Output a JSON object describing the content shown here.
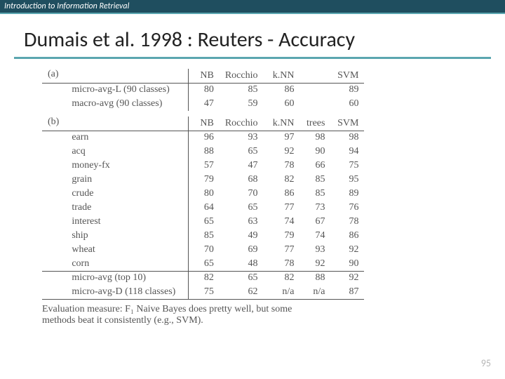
{
  "header": {
    "course": "Introduction to Information Retrieval"
  },
  "title": "Dumais et al. 1998 : Reuters - Accuracy",
  "table": {
    "section_a": "(a)",
    "section_b": "(b)",
    "cols_a": {
      "nb": "NB",
      "rocchio": "Rocchio",
      "knn": "k.NN",
      "trees": "",
      "svm": "SVM"
    },
    "cols_b": {
      "nb": "NB",
      "rocchio": "Rocchio",
      "knn": "k.NN",
      "trees": "trees",
      "svm": "SVM"
    },
    "a_rows": [
      {
        "label": "micro-avg-L (90 classes)",
        "nb": "80",
        "rocchio": "85",
        "knn": "86",
        "trees": "",
        "svm": "89"
      },
      {
        "label": "macro-avg (90 classes)",
        "nb": "47",
        "rocchio": "59",
        "knn": "60",
        "trees": "",
        "svm": "60"
      }
    ],
    "b_rows": [
      {
        "label": "earn",
        "nb": "96",
        "rocchio": "93",
        "knn": "97",
        "trees": "98",
        "svm": "98"
      },
      {
        "label": "acq",
        "nb": "88",
        "rocchio": "65",
        "knn": "92",
        "trees": "90",
        "svm": "94"
      },
      {
        "label": "money-fx",
        "nb": "57",
        "rocchio": "47",
        "knn": "78",
        "trees": "66",
        "svm": "75"
      },
      {
        "label": "grain",
        "nb": "79",
        "rocchio": "68",
        "knn": "82",
        "trees": "85",
        "svm": "95"
      },
      {
        "label": "crude",
        "nb": "80",
        "rocchio": "70",
        "knn": "86",
        "trees": "85",
        "svm": "89"
      },
      {
        "label": "trade",
        "nb": "64",
        "rocchio": "65",
        "knn": "77",
        "trees": "73",
        "svm": "76"
      },
      {
        "label": "interest",
        "nb": "65",
        "rocchio": "63",
        "knn": "74",
        "trees": "67",
        "svm": "78"
      },
      {
        "label": "ship",
        "nb": "85",
        "rocchio": "49",
        "knn": "79",
        "trees": "74",
        "svm": "86"
      },
      {
        "label": "wheat",
        "nb": "70",
        "rocchio": "69",
        "knn": "77",
        "trees": "93",
        "svm": "92"
      },
      {
        "label": "corn",
        "nb": "65",
        "rocchio": "48",
        "knn": "78",
        "trees": "92",
        "svm": "90"
      }
    ],
    "b_summary": [
      {
        "label": "micro-avg (top 10)",
        "nb": "82",
        "rocchio": "65",
        "knn": "82",
        "trees": "88",
        "svm": "92"
      },
      {
        "label": "micro-avg-D (118 classes)",
        "nb": "75",
        "rocchio": "62",
        "knn": "n/a",
        "trees": "n/a",
        "svm": "87"
      }
    ]
  },
  "caption_line1": "Evaluation measure: F₁ Naive Bayes does pretty well, but some",
  "caption_line2": "methods beat it consistently (e.g., SVM).",
  "pagenum": "95"
}
